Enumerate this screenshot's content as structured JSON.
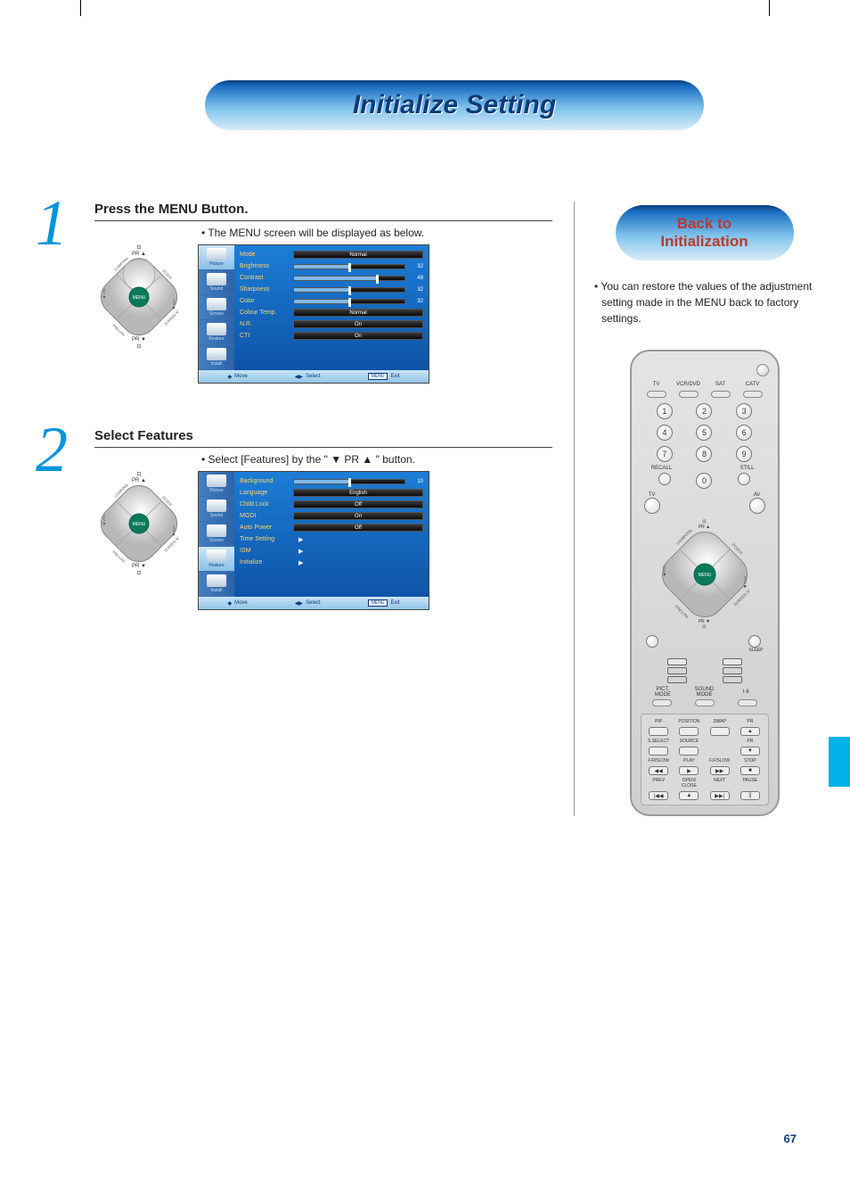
{
  "page_title": "Initialize Setting",
  "page_number": "67",
  "colors": {
    "accent_blue": "#0095db",
    "deep_blue": "#0b3c7a",
    "edge_tab": "#00b2e8",
    "side_title_red": "#b93a2e",
    "menu_label": "#ffd36b"
  },
  "step1": {
    "number": "1",
    "title": "Press the MENU Button.",
    "desc": "• The MENU screen will be displayed as below.",
    "menu": {
      "tabs": [
        "Picture",
        "Sound",
        "Screen",
        "Feature",
        "Install"
      ],
      "selected_tab": 0,
      "items": [
        {
          "label": "Mode",
          "type": "val",
          "value": "Normal"
        },
        {
          "label": "Brightness",
          "type": "slider",
          "value": 32,
          "max": 64
        },
        {
          "label": "Contrast",
          "type": "slider",
          "value": 48,
          "max": 64
        },
        {
          "label": "Sharpness",
          "type": "slider",
          "value": 32,
          "max": 64
        },
        {
          "label": "Color",
          "type": "slider",
          "value": 32,
          "max": 64
        },
        {
          "label": "Colour Temp.",
          "type": "val",
          "value": "Normal"
        },
        {
          "label": "N.R.",
          "type": "val",
          "value": "On"
        },
        {
          "label": "CTI",
          "type": "val",
          "value": "On"
        }
      ],
      "footer": {
        "move": "Move",
        "select": "Select",
        "exit_btn": "MENU",
        "exit": "Exit"
      }
    }
  },
  "step2": {
    "number": "2",
    "title": "Select Features",
    "desc": "• Select [Features] by the \" ▼ PR ▲ \" button.",
    "menu": {
      "tabs": [
        "Picture",
        "Sound",
        "Screen",
        "Feature",
        "Install"
      ],
      "selected_tab": 3,
      "items": [
        {
          "label": "Background",
          "type": "slider",
          "value": 10,
          "max": 20
        },
        {
          "label": "Language",
          "type": "val",
          "value": "English"
        },
        {
          "label": "Child Lock",
          "type": "val",
          "value": "Off"
        },
        {
          "label": "MGDI",
          "type": "val",
          "value": "On"
        },
        {
          "label": "Auto Power",
          "type": "val",
          "value": "Off"
        },
        {
          "label": "Time Setting",
          "type": "arrow"
        },
        {
          "label": "ISM",
          "type": "arrow"
        },
        {
          "label": "Initialize",
          "type": "arrow"
        }
      ],
      "footer": {
        "move": "Move",
        "select": "Select",
        "exit_btn": "MENU",
        "exit": "Exit"
      }
    }
  },
  "dpad": {
    "top_label": "PR ▲",
    "bottom_label": "PR ▼",
    "center": "MENU",
    "diag": {
      "tl": "COMPONENT",
      "tr": "PC/DVI",
      "bl": "PREV.PR",
      "br": "SCREEN SIZE"
    },
    "left": "◀ VOL",
    "right": "VOL ▶"
  },
  "side": {
    "title_l1": "Back to",
    "title_l2": "Initialization",
    "desc": "• You can restore the values of the adjustment setting made in the MENU back to factory settings."
  },
  "remote": {
    "src_labels": [
      "TV",
      "VCR/DVD",
      "SAT",
      "CATV"
    ],
    "recall": "RECALL",
    "still": "STILL",
    "tv": "TV",
    "av": "AV",
    "sleep": "SLEEP",
    "mode_labels": {
      "pict": "PICT.\nMODE",
      "sound": "SOUND\nMODE",
      "ii": "I·II"
    },
    "bp_row1": [
      "PIP",
      "POSITION",
      "SWAP",
      "PR"
    ],
    "bp_row2": [
      "S.SELECT",
      "SOURCE",
      "",
      "PR"
    ],
    "bp_row3": [
      "F.R/SLOW",
      "PLAY",
      "F.F/SLOW",
      "STOP"
    ],
    "bp_sym3": [
      "◀◀",
      "▶",
      "▶▶",
      "■"
    ],
    "bp_row4": [
      "PREV",
      "OPEN/\nCLOSE",
      "NEXT",
      "PAUSE"
    ],
    "bp_sym4": [
      "|◀◀",
      "▲",
      "▶▶|",
      "||"
    ]
  }
}
